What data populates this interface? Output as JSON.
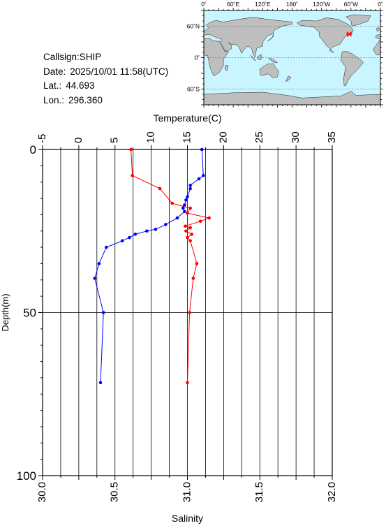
{
  "station": {
    "callsign_label": "Callsign:",
    "callsign": "SHIP",
    "date_label": "Date:",
    "date": "2025/10/01 11:58(UTC)",
    "lat_label": "Lat.:",
    "lat": "44.693",
    "lon_label": "Lon.:",
    "lon": "296.360"
  },
  "map": {
    "top_labels": [
      "0˚",
      "60˚E",
      "120˚E",
      "180˚",
      "120˚W",
      "60˚W",
      "0˚"
    ],
    "side_labels": [
      "60˚N",
      "0˚",
      "60˚S"
    ],
    "marker": {
      "lon": 296.36,
      "lat": 44.693
    },
    "ocean_color": "#c8f5ff",
    "land_color": "#bebebe",
    "marker_color": "#ff0000"
  },
  "chart_data": {
    "type": "line",
    "ylabel": "Depth(m)",
    "ylim": [
      100,
      0
    ],
    "yticks": [
      "0",
      "50",
      "100"
    ],
    "temperature_axis": {
      "label": "Temperature(C)",
      "range": [
        -5,
        35
      ],
      "ticks": [
        "-5",
        "0",
        "5",
        "10",
        "15",
        "20",
        "25",
        "30",
        "35"
      ]
    },
    "salinity_axis": {
      "label": "Salinity",
      "range": [
        30.0,
        32.0
      ],
      "ticks": [
        "30.0",
        "30.5",
        "31.0",
        "31.5",
        "32.0"
      ]
    },
    "grid": true,
    "series": [
      {
        "variable": "temperature",
        "color": "#ff0000",
        "points": [
          [
            7.2,
            0
          ],
          [
            7.4,
            8
          ],
          [
            11.2,
            12
          ],
          [
            12.9,
            16.5
          ],
          [
            15.4,
            18
          ],
          [
            15.0,
            19.5
          ],
          [
            18.0,
            21
          ],
          [
            16.8,
            22
          ],
          [
            14.7,
            23.5
          ],
          [
            15.4,
            24
          ],
          [
            14.8,
            25
          ],
          [
            15.6,
            26
          ],
          [
            15.0,
            27
          ],
          [
            15.4,
            28
          ],
          [
            16.3,
            35
          ],
          [
            15.8,
            39.5
          ],
          [
            15.3,
            50
          ],
          [
            15.0,
            71.5
          ]
        ]
      },
      {
        "variable": "salinity",
        "color": "#0000ff",
        "points": [
          [
            31.1,
            0
          ],
          [
            31.11,
            8
          ],
          [
            31.08,
            9
          ],
          [
            31.02,
            11
          ],
          [
            31.02,
            12
          ],
          [
            31.0,
            14.5
          ],
          [
            30.99,
            15.5
          ],
          [
            30.98,
            17
          ],
          [
            30.97,
            18
          ],
          [
            30.98,
            19
          ],
          [
            30.93,
            21
          ],
          [
            30.85,
            23
          ],
          [
            30.78,
            24.5
          ],
          [
            30.72,
            25
          ],
          [
            30.64,
            26
          ],
          [
            30.6,
            27
          ],
          [
            30.55,
            28
          ],
          [
            30.44,
            30
          ],
          [
            30.39,
            35
          ],
          [
            30.36,
            39.5
          ],
          [
            30.42,
            50
          ],
          [
            30.4,
            71.5
          ]
        ]
      }
    ]
  }
}
